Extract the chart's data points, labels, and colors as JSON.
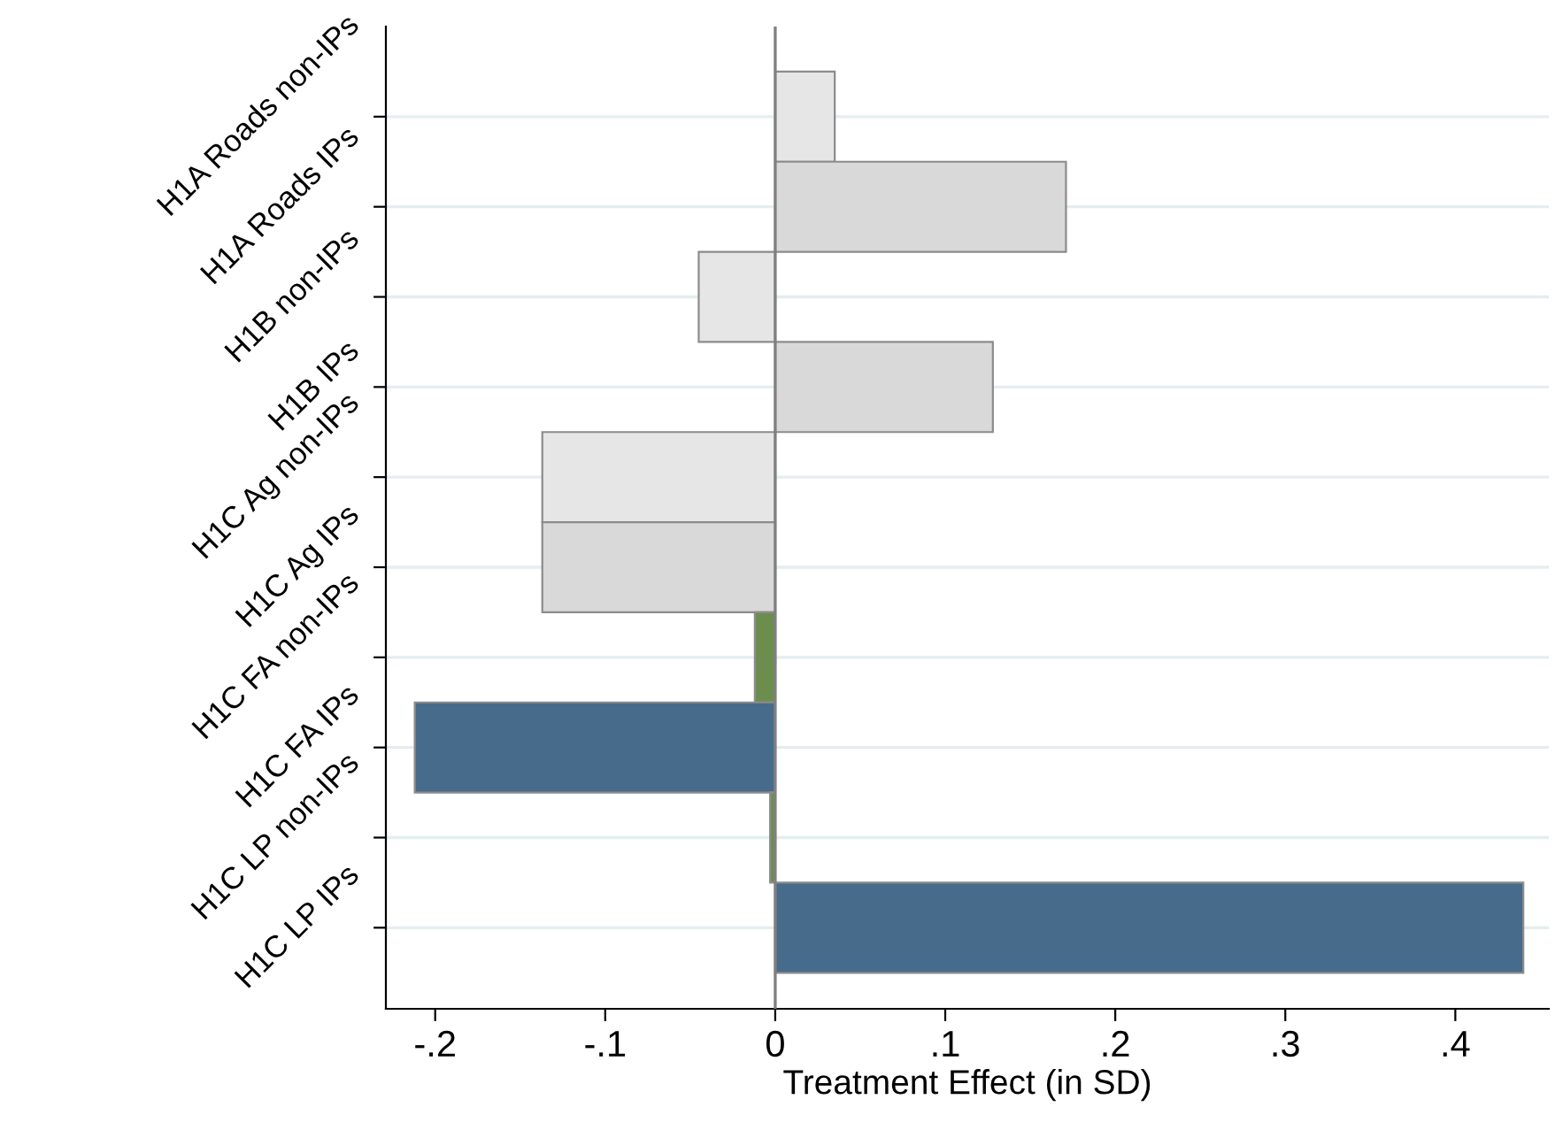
{
  "chart_data": {
    "type": "bar",
    "orientation": "horizontal",
    "xlabel": "Treatment Effect (in SD)",
    "categories": [
      "H1A Roads non-IPs",
      "H1A Roads IPs",
      "H1B non-IPs",
      "H1B IPs",
      "H1C Ag non-IPs",
      "H1C Ag IPs",
      "H1C FA non-IPs",
      "H1C FA IPs",
      "H1C LP non-IPs",
      "H1C LP IPs"
    ],
    "values": [
      0.035,
      0.171,
      -0.045,
      0.128,
      -0.137,
      -0.137,
      -0.012,
      -0.212,
      -0.003,
      0.44
    ],
    "colors": [
      "#e6e6e6",
      "#d9d9d9",
      "#e6e6e6",
      "#d9d9d9",
      "#e6e6e6",
      "#d9d9d9",
      "#6b8e4e",
      "#476b8a",
      "#6b8e4e",
      "#476b8a"
    ],
    "xlim": [
      -0.229,
      0.455
    ],
    "xticks": [
      {
        "value": -0.2,
        "label": "-.2"
      },
      {
        "value": -0.1,
        "label": "-.1"
      },
      0,
      {
        "value": 0.1,
        "label": ".1"
      },
      {
        "value": 0.2,
        "label": ".2"
      },
      {
        "value": 0.3,
        "label": ".3"
      },
      {
        "value": 0.4,
        "label": ".4"
      }
    ],
    "ref_lines": [
      {
        "axis": "x",
        "value": 0,
        "label": null,
        "color": "#808080"
      }
    ],
    "grid": "y"
  }
}
